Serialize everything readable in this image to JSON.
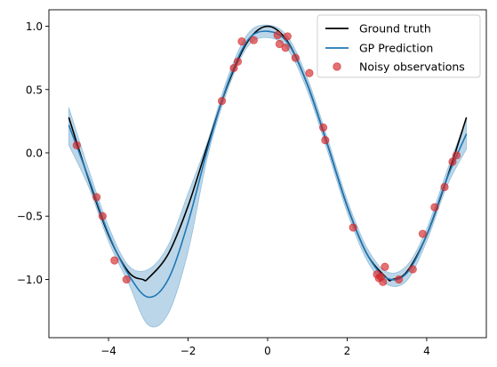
{
  "chart_data": {
    "type": "line",
    "title": "",
    "xlabel": "",
    "ylabel": "",
    "xlim": [
      -5.5,
      5.5
    ],
    "ylim": [
      -1.46,
      1.13
    ],
    "xticks": [
      -4,
      -2,
      0,
      2,
      4
    ],
    "xtick_labels": [
      "−4",
      "−2",
      "0",
      "2",
      "4"
    ],
    "yticks": [
      -1.0,
      -0.5,
      0.0,
      0.5,
      1.0
    ],
    "ytick_labels": [
      "−1.0",
      "−0.5",
      "0.0",
      "0.5",
      "1.0"
    ],
    "grid": false,
    "legend_position": "top-right",
    "series": [
      {
        "name": "Ground truth",
        "kind": "line",
        "color": "#000000",
        "x": [
          -5.0,
          -4.5,
          -4.0,
          -3.5,
          -3.14,
          -3.0,
          -2.5,
          -2.0,
          -1.5,
          -1.0,
          -0.5,
          0.0,
          0.5,
          1.0,
          1.5,
          2.0,
          2.5,
          3.0,
          3.14,
          3.5,
          4.0,
          4.5,
          5.0
        ],
        "y": [
          0.28,
          -0.21,
          -0.65,
          -0.94,
          -1.0,
          -0.99,
          -0.8,
          -0.42,
          0.07,
          0.54,
          0.88,
          1.0,
          0.88,
          0.54,
          0.07,
          -0.42,
          -0.8,
          -0.99,
          -1.0,
          -0.94,
          -0.65,
          -0.21,
          0.28
        ]
      },
      {
        "name": "GP Prediction",
        "kind": "line",
        "color": "#1f77b4",
        "x": [
          -5.0,
          -4.5,
          -4.0,
          -3.5,
          -3.0,
          -2.5,
          -2.0,
          -1.5,
          -1.0,
          -0.5,
          0.0,
          0.5,
          1.0,
          1.5,
          2.0,
          2.5,
          3.0,
          3.5,
          4.0,
          4.5,
          5.0
        ],
        "y": [
          0.22,
          -0.2,
          -0.64,
          -0.96,
          -1.14,
          -1.0,
          -0.55,
          0.04,
          0.55,
          0.89,
          0.96,
          0.87,
          0.54,
          0.07,
          -0.42,
          -0.8,
          -0.99,
          -0.95,
          -0.65,
          -0.21,
          0.15
        ],
        "lower": [
          0.06,
          -0.27,
          -0.7,
          -1.03,
          -1.36,
          -1.27,
          -0.78,
          -0.02,
          0.5,
          0.84,
          0.91,
          0.82,
          0.49,
          0.02,
          -0.47,
          -0.85,
          -1.04,
          -1.01,
          -0.7,
          -0.27,
          0.03
        ],
        "upper": [
          0.36,
          -0.13,
          -0.58,
          -0.89,
          -0.92,
          -0.73,
          -0.32,
          0.1,
          0.6,
          0.94,
          1.01,
          0.92,
          0.59,
          0.12,
          -0.37,
          -0.75,
          -0.94,
          -0.89,
          -0.6,
          -0.15,
          0.27
        ]
      },
      {
        "name": "Noisy observations",
        "kind": "scatter",
        "color": "#d62728",
        "x": [
          -4.8,
          -4.3,
          -4.15,
          -3.85,
          -3.55,
          -1.15,
          -0.85,
          -0.75,
          -0.65,
          -0.35,
          0.25,
          0.3,
          0.45,
          0.5,
          0.7,
          1.05,
          1.4,
          1.45,
          2.15,
          2.75,
          2.8,
          2.85,
          2.9,
          2.95,
          3.3,
          3.65,
          3.9,
          4.2,
          4.45,
          4.65,
          4.75
        ],
        "y": [
          0.06,
          -0.35,
          -0.5,
          -0.85,
          -1.0,
          0.41,
          0.67,
          0.72,
          0.88,
          0.89,
          0.93,
          0.86,
          0.83,
          0.92,
          0.75,
          0.63,
          0.2,
          0.1,
          -0.59,
          -0.96,
          -0.99,
          -0.98,
          -1.02,
          -0.9,
          -1.0,
          -0.92,
          -0.64,
          -0.43,
          -0.27,
          -0.07,
          -0.02
        ]
      }
    ]
  }
}
